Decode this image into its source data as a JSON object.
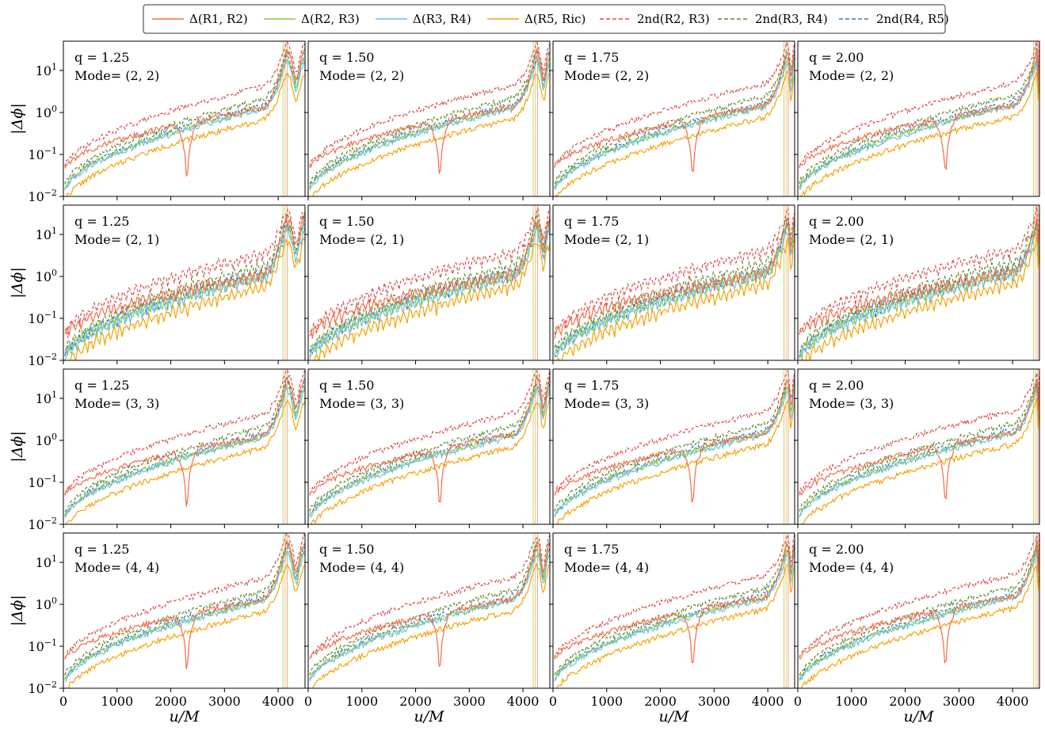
{
  "chart_data": {
    "type": "line",
    "yscale": "log",
    "ylim": [
      0.01,
      50
    ],
    "xlim": [
      0,
      4500
    ],
    "xlabel": "u/M",
    "ylabel": "|Δϕ|",
    "xticks": [
      {
        "value": 0,
        "label": "0"
      },
      {
        "value": 1000,
        "label": "1000"
      },
      {
        "value": 2000,
        "label": "2000"
      },
      {
        "value": 3000,
        "label": "3000"
      },
      {
        "value": 4000,
        "label": "4000"
      }
    ],
    "yticks": [
      {
        "value": 0.01,
        "base": "10",
        "exp": "−2"
      },
      {
        "value": 0.1,
        "base": "10",
        "exp": "−1"
      },
      {
        "value": 1,
        "base": "10",
        "exp": "0"
      },
      {
        "value": 10,
        "base": "10",
        "exp": "1"
      }
    ],
    "legend": {
      "placement": "top-center",
      "entries": [
        {
          "label": "Δ(R1, R2)",
          "color": "#f26d4b",
          "dash": false
        },
        {
          "label": "Δ(R2, R3)",
          "color": "#8ec63f",
          "dash": false
        },
        {
          "label": "Δ(R3, R4)",
          "color": "#6cc0e5",
          "dash": false
        },
        {
          "label": "Δ(R5, Ric)",
          "color": "#f5a20a",
          "dash": false
        },
        {
          "label": "2nd(R2, R3)",
          "color": "#d64f4f",
          "dash": true
        },
        {
          "label": "2nd(R3, R4)",
          "color": "#5e8a2a",
          "dash": true
        },
        {
          "label": "2nd(R4, R5)",
          "color": "#3a78b8",
          "dash": true
        }
      ]
    },
    "q_labels": [
      "q = 1.25",
      "q = 1.50",
      "q = 1.75",
      "q = 2.00"
    ],
    "mode_labels": [
      "Mode= (2, 2)",
      "Mode= (2, 1)",
      "Mode= (3, 3)",
      "Mode= (4, 4)"
    ],
    "merger_u": [
      4150,
      4250,
      4360,
      4450
    ],
    "series_params": [
      {
        "label": "Δ(R1, R2)",
        "v0": 0.04,
        "v4": 1.5,
        "vpk": 30
      },
      {
        "label": "Δ(R2, R3)",
        "v0": 0.012,
        "v4": 1.5,
        "vpk": 20
      },
      {
        "label": "Δ(R3, R4)",
        "v0": 0.011,
        "v4": 1.4,
        "vpk": 16
      },
      {
        "label": "Δ(R5, Ric)",
        "v0": 0.006,
        "v4": 0.8,
        "vpk": 9
      },
      {
        "label": "2nd(R2, R3)",
        "v0": 0.04,
        "v4": 5,
        "vpk": 45
      },
      {
        "label": "2nd(R3, R4)",
        "v0": 0.015,
        "v4": 2.5,
        "vpk": 30
      },
      {
        "label": "2nd(R4, R5)",
        "v0": 0.012,
        "v4": 1.8,
        "vpk": 22
      }
    ]
  }
}
